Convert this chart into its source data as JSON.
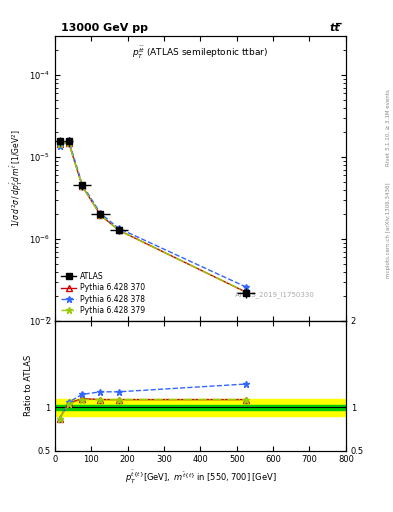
{
  "title_left": "13000 GeV pp",
  "title_right": "tt̅",
  "plot_label": "p_T^{t̅bar} (ATLAS semileptonic ttbar)",
  "watermark": "ATLAS_2019_I1750330",
  "right_label1": "Rivet 3.1.10, ≥ 3.1M events",
  "right_label2": "mcplots.cern.ch [arXiv:1306.3436]",
  "xlabel": "p_T^{tbar{t}}[GeV], m^{tbar{t}} in [550,700] [GeV]",
  "ylabel_main": "1 / σ d²σ / d p_T^{tbar{t}} d m^{tbar{t}} [1/GeV²]",
  "ylabel_ratio": "Ratio to ATLAS",
  "xlim": [
    0,
    800
  ],
  "ylim_main": [
    1e-07,
    0.0003
  ],
  "ylim_ratio": [
    0.5,
    2.0
  ],
  "x_data": [
    12.5,
    37.5,
    75.0,
    125.0,
    175.0,
    525.0
  ],
  "atlas_y": [
    1.55e-05,
    1.55e-05,
    4.5e-06,
    2e-06,
    1.3e-06,
    2.2e-07
  ],
  "atlas_xerr": [
    12.5,
    12.5,
    25.0,
    25.0,
    25.0,
    25.0
  ],
  "atlas_yerr_lo": [
    2e-06,
    2e-06,
    5e-07,
    2e-07,
    1.5e-07,
    3e-08
  ],
  "atlas_yerr_hi": [
    2e-06,
    2e-06,
    5e-07,
    2e-07,
    1.5e-07,
    3e-08
  ],
  "py370_y": [
    1.42e-05,
    1.5e-05,
    4.4e-06,
    1.95e-06,
    1.28e-06,
    2.25e-07
  ],
  "py378_y": [
    1.35e-05,
    1.6e-05,
    4.6e-06,
    2.05e-06,
    1.35e-06,
    2.6e-07
  ],
  "py379_y": [
    1.42e-05,
    1.5e-05,
    4.4e-06,
    1.95e-06,
    1.28e-06,
    2.25e-07
  ],
  "ratio_py370": [
    0.87,
    1.05,
    1.1,
    1.09,
    1.09,
    1.09
  ],
  "ratio_py378": [
    0.87,
    1.06,
    1.15,
    1.18,
    1.18,
    1.27
  ],
  "ratio_py379": [
    0.87,
    1.04,
    1.09,
    1.09,
    1.09,
    1.09
  ],
  "ratio_band_green_lo": 0.97,
  "ratio_band_green_hi": 1.03,
  "ratio_band_yellow_lo": 0.9,
  "ratio_band_yellow_hi": 1.1,
  "color_atlas": "#000000",
  "color_py370": "#cc0000",
  "color_py378": "#3366ff",
  "color_py379": "#99cc00",
  "color_band_green": "#00cc00",
  "color_band_yellow": "#ffff00",
  "legend_labels": [
    "ATLAS",
    "Pythia 6.428 370",
    "Pythia 6.428 378",
    "Pythia 6.428 379"
  ],
  "background_color": "#ffffff"
}
